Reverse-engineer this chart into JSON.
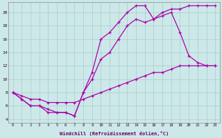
{
  "xlabel": "Windchill (Refroidissement éolien,°C)",
  "background_color": "#cce8e8",
  "grid_color": "#aacccc",
  "line_color": "#aa00aa",
  "xlim": [
    -0.5,
    23.5
  ],
  "ylim": [
    3.5,
    21.5
  ],
  "xticks": [
    0,
    1,
    2,
    3,
    4,
    5,
    6,
    7,
    8,
    9,
    10,
    11,
    12,
    13,
    14,
    15,
    16,
    17,
    18,
    19,
    20,
    21,
    22,
    23
  ],
  "yticks": [
    4,
    6,
    8,
    10,
    12,
    14,
    16,
    18,
    20
  ],
  "series1_x": [
    0,
    1,
    2,
    3,
    4,
    5,
    6,
    7,
    8,
    9,
    10,
    11,
    12,
    13,
    14,
    15,
    16,
    17,
    18,
    19,
    20,
    21,
    22,
    23
  ],
  "series1_y": [
    8,
    7,
    6,
    6,
    5,
    5,
    5,
    4.5,
    8,
    11,
    16,
    17,
    18.5,
    20,
    21,
    21,
    19,
    20,
    20.5,
    20.5,
    21,
    21,
    21,
    21
  ],
  "series2_x": [
    0,
    1,
    2,
    3,
    4,
    5,
    6,
    7,
    8,
    9,
    10,
    11,
    12,
    13,
    14,
    15,
    16,
    17,
    18,
    19,
    20,
    21,
    22,
    23
  ],
  "series2_y": [
    8,
    7,
    6,
    6,
    5.5,
    5,
    5,
    4.5,
    8,
    10,
    13,
    14,
    16,
    18,
    19,
    18.5,
    19,
    19.5,
    20,
    17,
    13.5,
    12.5,
    12,
    12
  ],
  "series3_x": [
    0,
    1,
    2,
    3,
    4,
    5,
    6,
    7,
    8,
    9,
    10,
    11,
    12,
    13,
    14,
    15,
    16,
    17,
    18,
    19,
    20,
    21,
    22,
    23
  ],
  "series3_y": [
    8,
    7.5,
    7,
    7,
    6.5,
    6.5,
    6.5,
    6.5,
    7,
    7.5,
    8,
    8.5,
    9,
    9.5,
    10,
    10.5,
    11,
    11,
    11.5,
    12,
    12,
    12,
    12,
    12
  ]
}
